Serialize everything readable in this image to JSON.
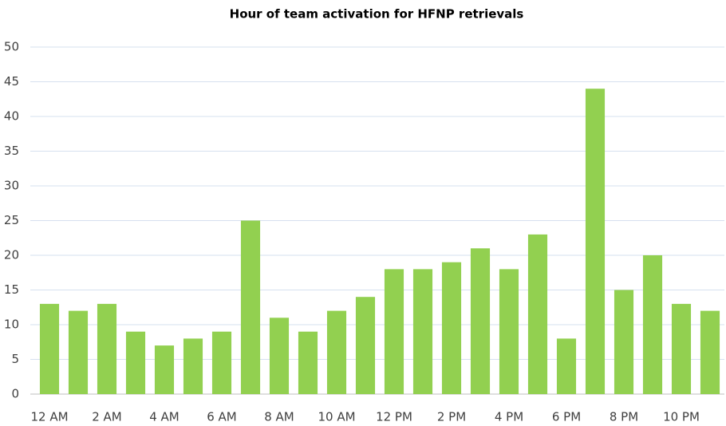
{
  "chart_data": {
    "type": "bar",
    "title": "Hour of team activation for HFNP retrievals",
    "categories": [
      "12 AM",
      null,
      "2 AM",
      null,
      "4 AM",
      null,
      "6 AM",
      null,
      "8 AM",
      null,
      "10 AM",
      null,
      "12 PM",
      null,
      "2 PM",
      null,
      "4 PM",
      null,
      "6 PM",
      null,
      "8 PM",
      null,
      "10 PM",
      null
    ],
    "values": [
      13,
      12,
      13,
      9,
      7,
      8,
      9,
      25,
      11,
      9,
      12,
      14,
      18,
      18,
      19,
      21,
      18,
      23,
      8,
      44,
      15,
      20,
      13,
      12
    ],
    "color": "#92d050",
    "ylim": [
      0,
      50
    ],
    "yticks": [
      0,
      5,
      10,
      15,
      20,
      25,
      30,
      35,
      40,
      45,
      50
    ],
    "grid": true
  }
}
